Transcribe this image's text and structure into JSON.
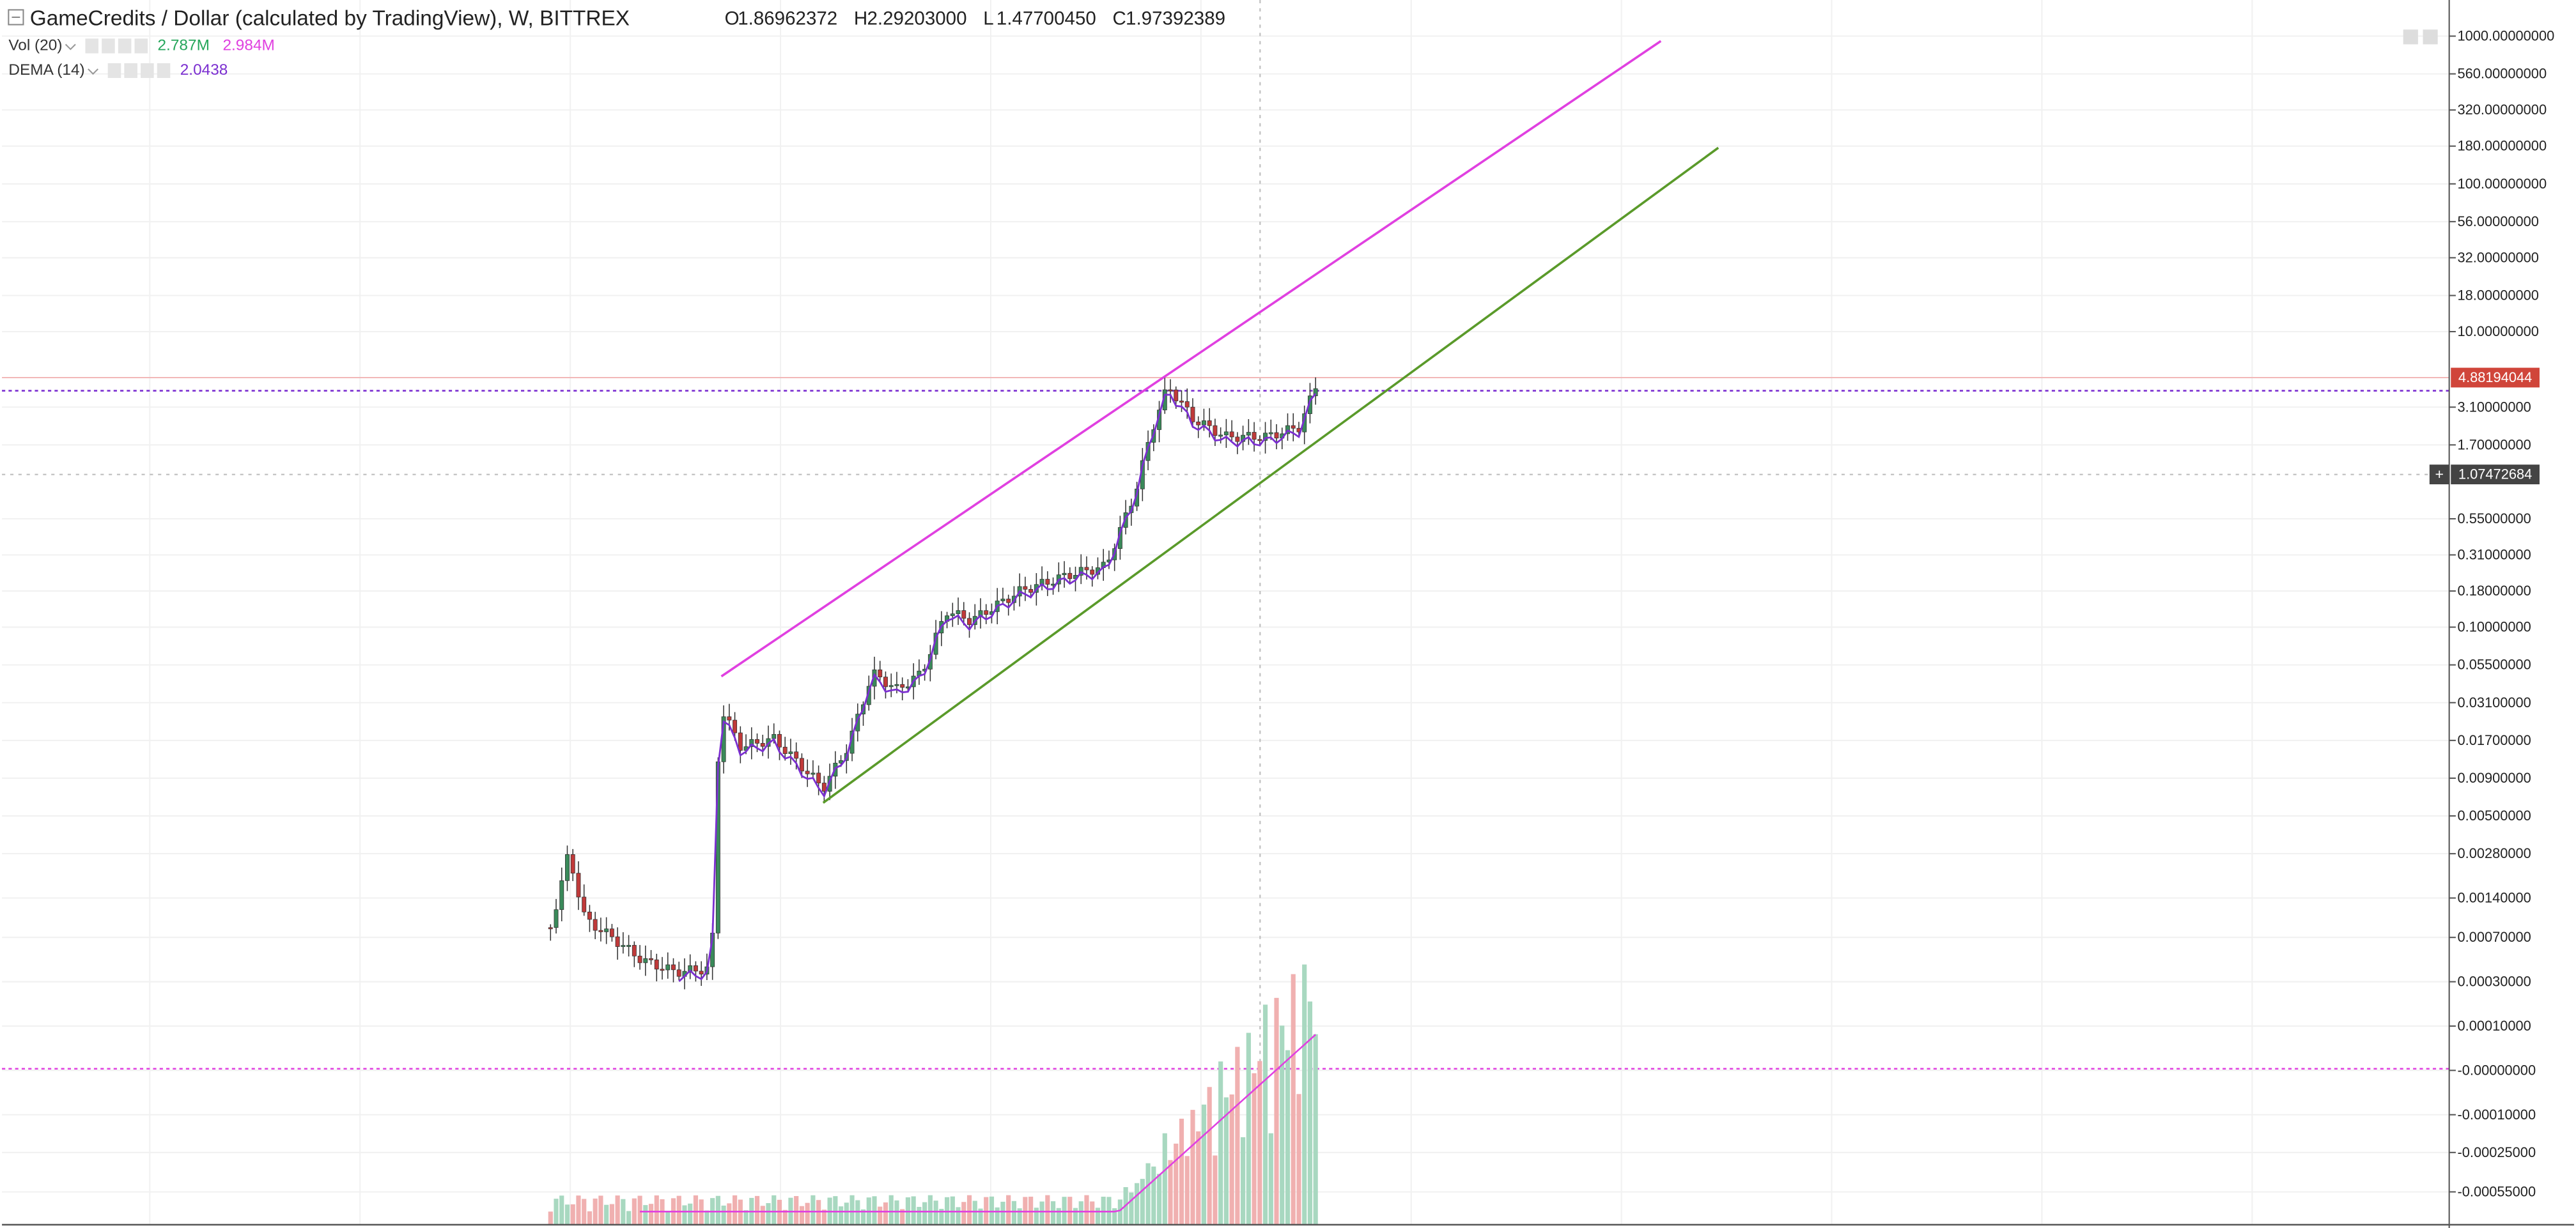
{
  "header": {
    "title": "GameCredits / Dollar (calculated by TradingView), W, BITTREX",
    "ohlc": [
      {
        "label": "O",
        "value": "1.86962372"
      },
      {
        "label": "H",
        "value": "2.29203000"
      },
      {
        "label": "L",
        "value": "1.47700450"
      },
      {
        "label": "C",
        "value": "1.97392389"
      }
    ]
  },
  "indicators": [
    {
      "name": "Vol (20)",
      "values": [
        "2.787M",
        "2.984M"
      ]
    },
    {
      "name": "DEMA (14)",
      "values": [
        "2.0438"
      ]
    }
  ],
  "price_axis": {
    "labels": [
      "1000.00000000",
      "560.00000000",
      "320.00000000",
      "180.00000000",
      "100.00000000",
      "56.00000000",
      "32.00000000",
      "18.00000000",
      "10.00000000",
      "3.10000000",
      "1.70000000",
      "0.55000000",
      "0.31000000",
      "0.18000000",
      "0.10000000",
      "0.05500000",
      "0.03100000",
      "0.01700000",
      "0.00900000",
      "0.00500000",
      "0.00280000",
      "0.00140000",
      "0.00070000",
      "0.00030000",
      "0.00010000",
      "-0.00000000",
      "-0.00010000",
      "-0.00025000",
      "-0.00055000"
    ],
    "last_price": "4.88194044",
    "crosshair_price": "1.07472684"
  }
}
